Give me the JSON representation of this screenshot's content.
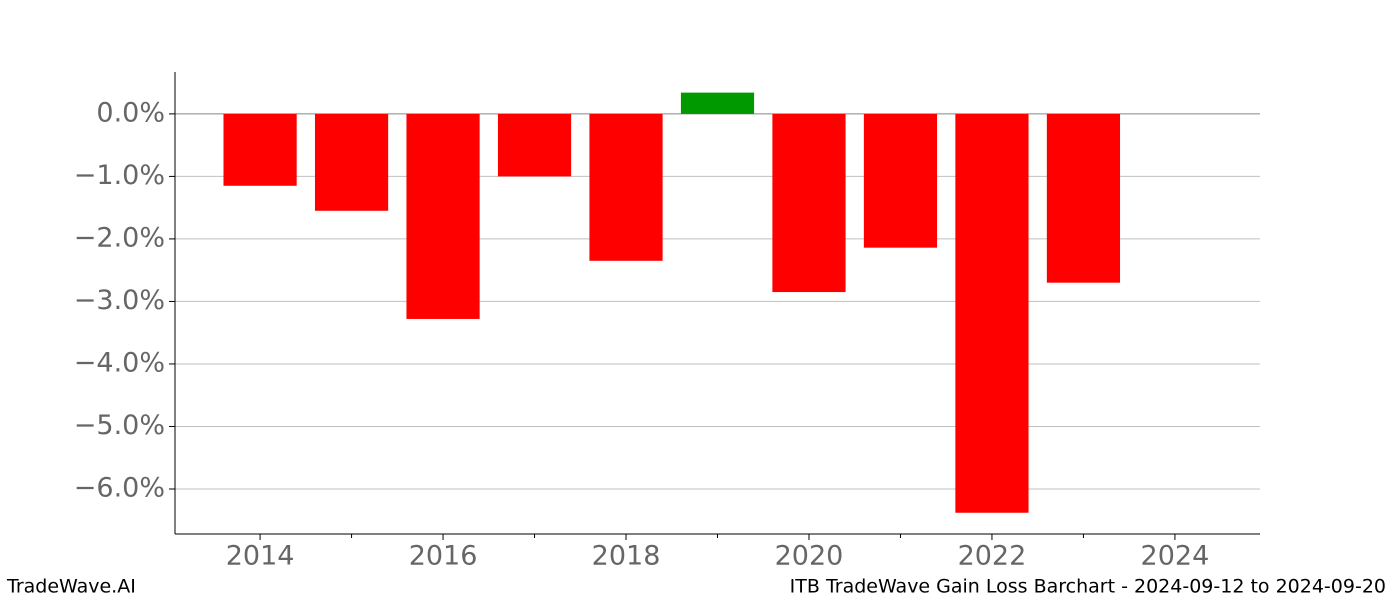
{
  "chart_data": {
    "type": "bar",
    "footer_left": "TradeWave.AI",
    "footer_right": "ITB TradeWave Gain Loss Barchart - 2024-09-12 to 2024-09-20",
    "x": [
      2014,
      2015,
      2016,
      2017,
      2018,
      2019,
      2020,
      2021,
      2022,
      2023
    ],
    "values": [
      -1.15,
      -1.55,
      -3.28,
      -1.0,
      -2.35,
      0.34,
      -2.85,
      -2.14,
      -6.38,
      -2.7
    ],
    "colors": [
      "#ff0000",
      "#ff0000",
      "#ff0000",
      "#ff0000",
      "#ff0000",
      "#009900",
      "#ff0000",
      "#ff0000",
      "#ff0000",
      "#ff0000"
    ],
    "xlim": [
      2013.07,
      2024.93
    ],
    "xticks": [
      2014,
      2016,
      2018,
      2020,
      2022,
      2024
    ],
    "xminorticks": [
      2015,
      2017,
      2019,
      2021,
      2023
    ],
    "ylim": [
      -6.72,
      0.67
    ],
    "yticks": [
      {
        "value": 0,
        "label": "0.0%"
      },
      {
        "value": -1,
        "label": "−1.0%"
      },
      {
        "value": -2,
        "label": "−2.0%"
      },
      {
        "value": -3,
        "label": "−3.0%"
      },
      {
        "value": -4,
        "label": "−4.0%"
      },
      {
        "value": -5,
        "label": "−5.0%"
      },
      {
        "value": -6,
        "label": "−6.0%"
      }
    ],
    "grid": true
  }
}
